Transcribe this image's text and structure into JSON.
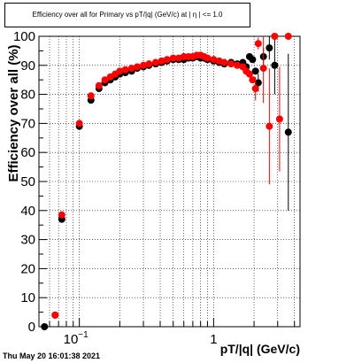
{
  "title": "Efficiency over all for Primary vs pT/|q| (GeV/c) at |  η  | <= 1.0",
  "timestamp": "Thu May 20 16:01:38 2021",
  "colors": {
    "series_black": "#000000",
    "series_red": "#ff0000",
    "axis": "#000000",
    "background": "#ffffff"
  },
  "chart_data": {
    "type": "scatter",
    "xlabel": "pT/|q| (GeV/c)",
    "ylabel": "Efficiency over all (%)",
    "xscale": "log",
    "xlim": [
      0.05,
      4.4
    ],
    "ylim": [
      0,
      100
    ],
    "grid": true,
    "legend": "none",
    "x_tick_labels": [
      "10",
      "1"
    ],
    "y_tick_labels": [
      "0",
      "10",
      "20",
      "30",
      "40",
      "50",
      "60",
      "70",
      "80",
      "90",
      "100"
    ],
    "series": [
      {
        "color": "#000000",
        "points": [
          {
            "x": 0.055,
            "y": 0
          },
          {
            "x": 0.066,
            "y": 4
          },
          {
            "x": 0.074,
            "y": 37
          },
          {
            "x": 0.1,
            "y": 69
          },
          {
            "x": 0.122,
            "y": 78
          },
          {
            "x": 0.14,
            "y": 82
          },
          {
            "x": 0.155,
            "y": 84
          },
          {
            "x": 0.17,
            "y": 85
          },
          {
            "x": 0.185,
            "y": 86
          },
          {
            "x": 0.2,
            "y": 87
          },
          {
            "x": 0.22,
            "y": 87.5
          },
          {
            "x": 0.245,
            "y": 88
          },
          {
            "x": 0.27,
            "y": 89
          },
          {
            "x": 0.3,
            "y": 89.5
          },
          {
            "x": 0.33,
            "y": 90
          },
          {
            "x": 0.37,
            "y": 90.5
          },
          {
            "x": 0.41,
            "y": 91
          },
          {
            "x": 0.45,
            "y": 91.5
          },
          {
            "x": 0.5,
            "y": 92
          },
          {
            "x": 0.55,
            "y": 92
          },
          {
            "x": 0.6,
            "y": 92
          },
          {
            "x": 0.65,
            "y": 92.5
          },
          {
            "x": 0.7,
            "y": 92.5
          },
          {
            "x": 0.75,
            "y": 93
          },
          {
            "x": 0.8,
            "y": 92.5
          },
          {
            "x": 0.85,
            "y": 92.5
          },
          {
            "x": 0.9,
            "y": 92
          },
          {
            "x": 1.0,
            "y": 91.5
          },
          {
            "x": 1.1,
            "y": 91
          },
          {
            "x": 1.2,
            "y": 90.5
          },
          {
            "x": 1.35,
            "y": 91
          },
          {
            "x": 1.5,
            "y": 90.5
          },
          {
            "x": 1.65,
            "y": 91
          },
          {
            "x": 1.75,
            "y": 89.5
          },
          {
            "x": 1.85,
            "y": 93
          },
          {
            "x": 1.95,
            "y": 92
          },
          {
            "x": 2.05,
            "y": 88
          },
          {
            "x": 2.15,
            "y": 84,
            "err": 3
          },
          {
            "x": 2.35,
            "y": 93,
            "err": 3
          },
          {
            "x": 2.6,
            "y": 96,
            "err": 4
          },
          {
            "x": 2.85,
            "y": 90,
            "err": 10
          },
          {
            "x": 3.6,
            "y": 67,
            "err": 27
          }
        ]
      },
      {
        "color": "#ff0000",
        "points": [
          {
            "x": 0.066,
            "y": 4
          },
          {
            "x": 0.074,
            "y": 38.5
          },
          {
            "x": 0.1,
            "y": 70
          },
          {
            "x": 0.122,
            "y": 79.5
          },
          {
            "x": 0.14,
            "y": 83
          },
          {
            "x": 0.155,
            "y": 85
          },
          {
            "x": 0.17,
            "y": 86
          },
          {
            "x": 0.185,
            "y": 87
          },
          {
            "x": 0.2,
            "y": 88
          },
          {
            "x": 0.22,
            "y": 88.5
          },
          {
            "x": 0.245,
            "y": 89
          },
          {
            "x": 0.27,
            "y": 89.5
          },
          {
            "x": 0.3,
            "y": 90
          },
          {
            "x": 0.33,
            "y": 90.5
          },
          {
            "x": 0.37,
            "y": 91
          },
          {
            "x": 0.41,
            "y": 91.5
          },
          {
            "x": 0.45,
            "y": 92
          },
          {
            "x": 0.5,
            "y": 92.5
          },
          {
            "x": 0.55,
            "y": 92.5
          },
          {
            "x": 0.6,
            "y": 93
          },
          {
            "x": 0.65,
            "y": 93
          },
          {
            "x": 0.7,
            "y": 93
          },
          {
            "x": 0.75,
            "y": 93.5
          },
          {
            "x": 0.8,
            "y": 93.5
          },
          {
            "x": 0.85,
            "y": 93
          },
          {
            "x": 0.9,
            "y": 92.5
          },
          {
            "x": 1.0,
            "y": 92
          },
          {
            "x": 1.1,
            "y": 91.5
          },
          {
            "x": 1.2,
            "y": 91
          },
          {
            "x": 1.35,
            "y": 90.5
          },
          {
            "x": 1.5,
            "y": 90
          },
          {
            "x": 1.65,
            "y": 89.5
          },
          {
            "x": 1.75,
            "y": 88
          },
          {
            "x": 1.85,
            "y": 87
          },
          {
            "x": 1.95,
            "y": 85
          },
          {
            "x": 2.05,
            "y": 82,
            "err": 4
          },
          {
            "x": 2.15,
            "y": 97.5,
            "err": 2
          },
          {
            "x": 2.35,
            "y": 89,
            "err": 12
          },
          {
            "x": 2.6,
            "y": 69,
            "err": 20
          },
          {
            "x": 2.85,
            "y": 100,
            "err": 1
          },
          {
            "x": 3.1,
            "y": 71.5,
            "err": 18
          },
          {
            "x": 3.6,
            "y": 100,
            "err": 1
          }
        ]
      }
    ]
  }
}
